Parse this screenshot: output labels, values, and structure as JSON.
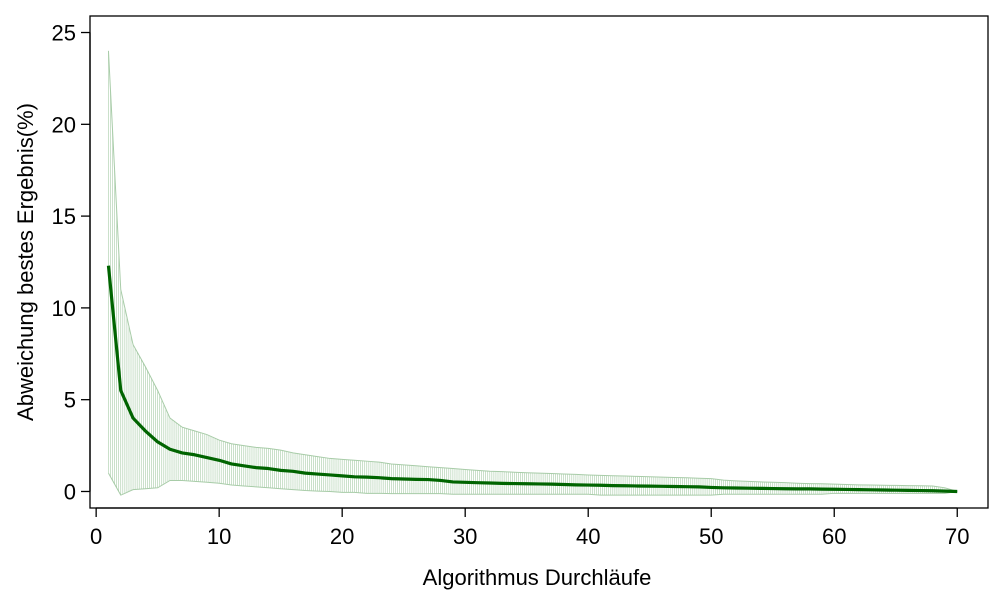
{
  "chart_data": {
    "type": "line",
    "title": "",
    "xlabel": "Algorithmus Durchläufe",
    "ylabel": "Abweichung bestes Ergebnis(%)",
    "xlim": [
      -0.5,
      72.5
    ],
    "ylim": [
      -0.9,
      25.9
    ],
    "xticks": [
      0,
      10,
      20,
      30,
      40,
      50,
      60,
      70
    ],
    "yticks": [
      0,
      5,
      10,
      15,
      20,
      25
    ],
    "grid": false,
    "legend": "none",
    "colors": {
      "line": "#006400",
      "band": "#a8cca8",
      "axis": "#000000"
    },
    "series": [
      {
        "x": [
          1,
          2,
          3,
          4,
          5,
          6,
          7,
          8,
          9,
          10,
          11,
          12,
          13,
          14,
          15,
          16,
          17,
          18,
          19,
          20,
          21,
          22,
          23,
          24,
          25,
          26,
          27,
          28,
          29,
          30,
          31,
          32,
          33,
          34,
          35,
          36,
          37,
          38,
          39,
          40,
          41,
          42,
          43,
          44,
          45,
          46,
          47,
          48,
          49,
          50,
          51,
          52,
          53,
          54,
          55,
          56,
          57,
          58,
          59,
          60,
          61,
          62,
          63,
          64,
          65,
          66,
          67,
          68,
          69,
          70
        ],
        "y": [
          12.3,
          5.5,
          4.0,
          3.3,
          2.7,
          2.3,
          2.1,
          2.0,
          1.85,
          1.7,
          1.5,
          1.4,
          1.3,
          1.25,
          1.15,
          1.1,
          1.0,
          0.95,
          0.9,
          0.85,
          0.8,
          0.78,
          0.75,
          0.7,
          0.68,
          0.66,
          0.65,
          0.6,
          0.52,
          0.5,
          0.48,
          0.46,
          0.44,
          0.43,
          0.42,
          0.41,
          0.4,
          0.38,
          0.36,
          0.35,
          0.34,
          0.32,
          0.31,
          0.3,
          0.29,
          0.28,
          0.27,
          0.26,
          0.25,
          0.22,
          0.2,
          0.19,
          0.18,
          0.17,
          0.16,
          0.15,
          0.14,
          0.14,
          0.13,
          0.12,
          0.11,
          0.1,
          0.09,
          0.08,
          0.07,
          0.06,
          0.05,
          0.04,
          0.02,
          0.0
        ],
        "upper": [
          24.0,
          11.0,
          8.0,
          6.8,
          5.5,
          4.0,
          3.5,
          3.3,
          3.1,
          2.8,
          2.6,
          2.5,
          2.4,
          2.35,
          2.25,
          2.1,
          2.0,
          1.9,
          1.8,
          1.75,
          1.7,
          1.65,
          1.6,
          1.5,
          1.45,
          1.4,
          1.35,
          1.3,
          1.25,
          1.2,
          1.15,
          1.1,
          1.08,
          1.05,
          1.02,
          1.0,
          0.98,
          0.95,
          0.93,
          0.9,
          0.88,
          0.86,
          0.84,
          0.82,
          0.8,
          0.78,
          0.76,
          0.75,
          0.72,
          0.7,
          0.62,
          0.58,
          0.55,
          0.52,
          0.5,
          0.48,
          0.45,
          0.43,
          0.42,
          0.4,
          0.38,
          0.36,
          0.35,
          0.34,
          0.33,
          0.32,
          0.31,
          0.3,
          0.2,
          0.0
        ],
        "lower": [
          1.0,
          -0.2,
          0.1,
          0.15,
          0.2,
          0.6,
          0.6,
          0.55,
          0.5,
          0.45,
          0.35,
          0.3,
          0.25,
          0.2,
          0.15,
          0.1,
          0.05,
          0.02,
          0.0,
          -0.05,
          -0.05,
          -0.1,
          -0.1,
          -0.12,
          -0.12,
          -0.12,
          -0.12,
          -0.12,
          -0.15,
          -0.15,
          -0.15,
          -0.15,
          -0.15,
          -0.15,
          -0.15,
          -0.15,
          -0.15,
          -0.15,
          -0.15,
          -0.15,
          -0.2,
          -0.2,
          -0.2,
          -0.2,
          -0.2,
          -0.2,
          -0.2,
          -0.2,
          -0.2,
          -0.2,
          -0.15,
          -0.15,
          -0.15,
          -0.15,
          -0.15,
          -0.15,
          -0.15,
          -0.15,
          -0.15,
          -0.1,
          -0.1,
          -0.1,
          -0.1,
          -0.1,
          -0.1,
          -0.1,
          -0.1,
          -0.1,
          -0.1,
          0.0
        ]
      }
    ]
  }
}
